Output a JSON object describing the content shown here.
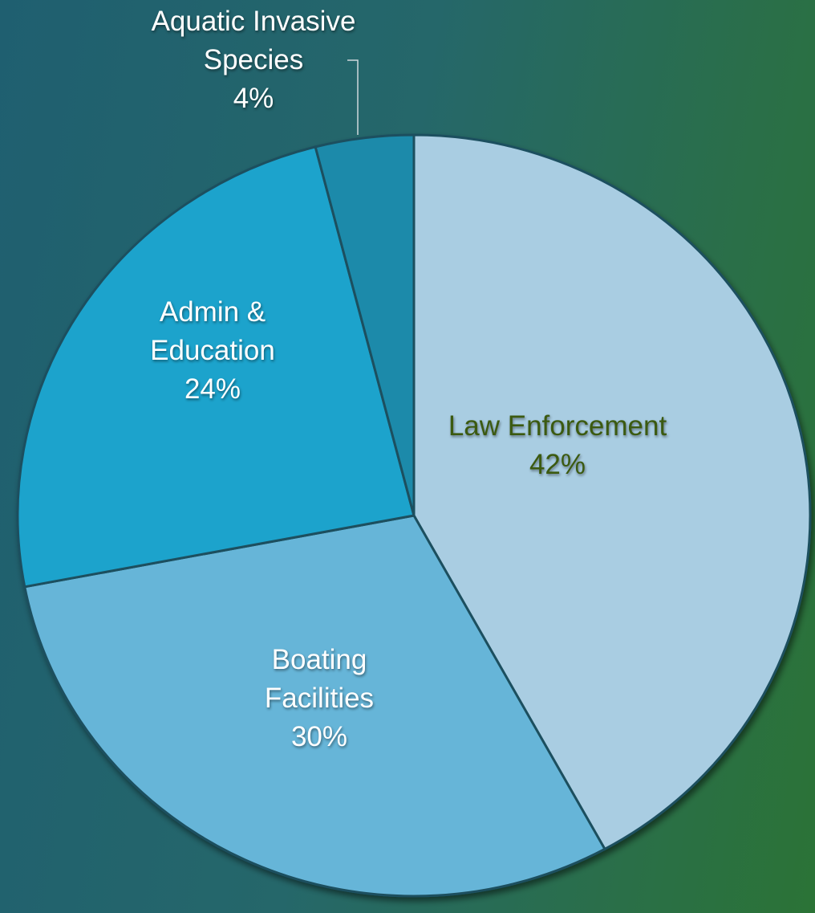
{
  "chart_data": {
    "type": "pie",
    "categories": [
      "Law Enforcement",
      "Boating Facilities",
      "Admin & Education",
      "Aquatic Invasive Species"
    ],
    "values": [
      42,
      30,
      24,
      4
    ],
    "value_labels": [
      "42%",
      "30%",
      "24%",
      "4%"
    ],
    "colors": [
      "#a9cde2",
      "#66b5d8",
      "#1ea3cc",
      "#1a8aaa"
    ],
    "label_colors": [
      "#3b5a10",
      "#ffffff",
      "#ffffff",
      "#ffffff"
    ]
  }
}
